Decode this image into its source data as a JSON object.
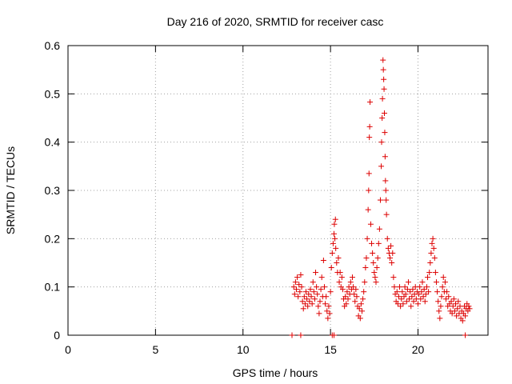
{
  "chart_data": {
    "type": "scatter",
    "title": "Day 216 of 2020, SRMTID for receiver casc",
    "xlabel": "GPS time / hours",
    "ylabel": "SRMTID / TECUs",
    "xlim": [
      0,
      24
    ],
    "ylim": [
      0,
      0.6
    ],
    "xticks": [
      0,
      5,
      10,
      15,
      20
    ],
    "yticks": [
      0,
      0.1,
      0.2,
      0.3,
      0.4,
      0.5,
      0.6
    ],
    "xtick_labels": [
      "0",
      "5",
      "10",
      "15",
      "20"
    ],
    "ytick_labels": [
      "0",
      "0.1",
      "0.2",
      "0.3",
      "0.4",
      "0.5",
      "0.6"
    ],
    "grid": true,
    "marker": "+",
    "color": "#dd0000",
    "series": [
      {
        "name": "SRMTID",
        "points": [
          [
            12.9,
            0.1
          ],
          [
            12.95,
            0.085
          ],
          [
            13.0,
            0.11
          ],
          [
            13.05,
            0.095
          ],
          [
            13.1,
            0.12
          ],
          [
            13.15,
            0.08
          ],
          [
            13.2,
            0.105
          ],
          [
            13.25,
            0.09
          ],
          [
            13.3,
            0.125
          ],
          [
            13.35,
            0.1
          ],
          [
            13.4,
            0.07
          ],
          [
            13.45,
            0.055
          ],
          [
            13.5,
            0.08
          ],
          [
            13.55,
            0.065
          ],
          [
            13.6,
            0.09
          ],
          [
            13.65,
            0.075
          ],
          [
            13.7,
            0.06
          ],
          [
            13.75,
            0.085
          ],
          [
            13.8,
            0.07
          ],
          [
            13.85,
            0.095
          ],
          [
            13.9,
            0.08
          ],
          [
            13.95,
            0.065
          ],
          [
            14.0,
            0.11
          ],
          [
            14.05,
            0.09
          ],
          [
            14.1,
            0.075
          ],
          [
            14.15,
            0.13
          ],
          [
            14.2,
            0.1
          ],
          [
            14.25,
            0.085
          ],
          [
            14.3,
            0.06
          ],
          [
            14.35,
            0.045
          ],
          [
            14.4,
            0.07
          ],
          [
            14.45,
            0.095
          ],
          [
            14.5,
            0.12
          ],
          [
            14.55,
            0.08
          ],
          [
            14.6,
            0.155
          ],
          [
            14.65,
            0.1
          ],
          [
            14.7,
            0.065
          ],
          [
            14.75,
            0.08
          ],
          [
            14.8,
            0.05
          ],
          [
            14.85,
            0.035
          ],
          [
            14.9,
            0.06
          ],
          [
            14.95,
            0.045
          ],
          [
            15.0,
            0.09
          ],
          [
            15.05,
            0.14
          ],
          [
            15.1,
            0.17
          ],
          [
            15.15,
            0.19
          ],
          [
            15.2,
            0.21
          ],
          [
            15.22,
            0.23
          ],
          [
            15.25,
            0.2
          ],
          [
            15.28,
            0.24
          ],
          [
            15.3,
            0.18
          ],
          [
            15.35,
            0.15
          ],
          [
            15.4,
            0.13
          ],
          [
            15.45,
            0.16
          ],
          [
            15.5,
            0.11
          ],
          [
            15.55,
            0.13
          ],
          [
            15.6,
            0.1
          ],
          [
            15.65,
            0.12
          ],
          [
            15.7,
            0.095
          ],
          [
            15.75,
            0.075
          ],
          [
            15.8,
            0.06
          ],
          [
            15.85,
            0.08
          ],
          [
            15.9,
            0.065
          ],
          [
            15.95,
            0.09
          ],
          [
            16.0,
            0.075
          ],
          [
            16.05,
            0.1
          ],
          [
            16.1,
            0.085
          ],
          [
            16.15,
            0.11
          ],
          [
            16.2,
            0.095
          ],
          [
            16.25,
            0.12
          ],
          [
            16.3,
            0.1
          ],
          [
            16.35,
            0.085
          ],
          [
            16.4,
            0.07
          ],
          [
            16.45,
            0.095
          ],
          [
            16.5,
            0.08
          ],
          [
            16.55,
            0.06
          ],
          [
            16.6,
            0.04
          ],
          [
            16.65,
            0.055
          ],
          [
            16.7,
            0.035
          ],
          [
            16.75,
            0.065
          ],
          [
            16.8,
            0.05
          ],
          [
            16.85,
            0.075
          ],
          [
            16.9,
            0.09
          ],
          [
            16.95,
            0.11
          ],
          [
            17.0,
            0.14
          ],
          [
            17.05,
            0.16
          ],
          [
            17.1,
            0.2
          ],
          [
            17.15,
            0.26
          ],
          [
            17.18,
            0.3
          ],
          [
            17.2,
            0.335
          ],
          [
            17.22,
            0.41
          ],
          [
            17.24,
            0.432
          ],
          [
            17.26,
            0.483
          ],
          [
            17.3,
            0.23
          ],
          [
            17.35,
            0.19
          ],
          [
            17.4,
            0.17
          ],
          [
            17.45,
            0.15
          ],
          [
            17.5,
            0.13
          ],
          [
            17.55,
            0.12
          ],
          [
            17.6,
            0.11
          ],
          [
            17.65,
            0.14
          ],
          [
            17.7,
            0.16
          ],
          [
            17.75,
            0.19
          ],
          [
            17.8,
            0.22
          ],
          [
            17.85,
            0.28
          ],
          [
            17.9,
            0.35
          ],
          [
            17.92,
            0.4
          ],
          [
            17.95,
            0.45
          ],
          [
            17.97,
            0.49
          ],
          [
            18.0,
            0.57
          ],
          [
            18.02,
            0.55
          ],
          [
            18.04,
            0.53
          ],
          [
            18.06,
            0.51
          ],
          [
            18.08,
            0.46
          ],
          [
            18.1,
            0.42
          ],
          [
            18.12,
            0.37
          ],
          [
            18.14,
            0.32
          ],
          [
            18.16,
            0.3
          ],
          [
            18.18,
            0.28
          ],
          [
            18.2,
            0.25
          ],
          [
            18.25,
            0.2
          ],
          [
            18.3,
            0.18
          ],
          [
            18.35,
            0.17
          ],
          [
            18.4,
            0.16
          ],
          [
            18.45,
            0.185
          ],
          [
            18.5,
            0.15
          ],
          [
            18.55,
            0.17
          ],
          [
            18.6,
            0.12
          ],
          [
            18.65,
            0.1
          ],
          [
            18.7,
            0.085
          ],
          [
            18.75,
            0.07
          ],
          [
            18.8,
            0.09
          ],
          [
            18.85,
            0.065
          ],
          [
            18.9,
            0.08
          ],
          [
            18.95,
            0.1
          ],
          [
            19.0,
            0.06
          ],
          [
            19.05,
            0.075
          ],
          [
            19.1,
            0.09
          ],
          [
            19.15,
            0.065
          ],
          [
            19.2,
            0.08
          ],
          [
            19.25,
            0.1
          ],
          [
            19.3,
            0.085
          ],
          [
            19.35,
            0.07
          ],
          [
            19.4,
            0.095
          ],
          [
            19.45,
            0.11
          ],
          [
            19.5,
            0.075
          ],
          [
            19.55,
            0.09
          ],
          [
            19.6,
            0.06
          ],
          [
            19.65,
            0.08
          ],
          [
            19.7,
            0.095
          ],
          [
            19.75,
            0.07
          ],
          [
            19.8,
            0.085
          ],
          [
            19.85,
            0.1
          ],
          [
            19.9,
            0.075
          ],
          [
            19.95,
            0.09
          ],
          [
            20.0,
            0.065
          ],
          [
            20.05,
            0.085
          ],
          [
            20.1,
            0.1
          ],
          [
            20.15,
            0.075
          ],
          [
            20.2,
            0.09
          ],
          [
            20.25,
            0.11
          ],
          [
            20.3,
            0.08
          ],
          [
            20.35,
            0.095
          ],
          [
            20.4,
            0.07
          ],
          [
            20.45,
            0.085
          ],
          [
            20.5,
            0.1
          ],
          [
            20.55,
            0.12
          ],
          [
            20.6,
            0.09
          ],
          [
            20.65,
            0.13
          ],
          [
            20.7,
            0.15
          ],
          [
            20.75,
            0.17
          ],
          [
            20.8,
            0.19
          ],
          [
            20.85,
            0.2
          ],
          [
            20.9,
            0.18
          ],
          [
            20.95,
            0.16
          ],
          [
            21.0,
            0.13
          ],
          [
            21.05,
            0.11
          ],
          [
            21.1,
            0.09
          ],
          [
            21.15,
            0.07
          ],
          [
            21.2,
            0.05
          ],
          [
            21.25,
            0.035
          ],
          [
            21.3,
            0.06
          ],
          [
            21.35,
            0.08
          ],
          [
            21.4,
            0.1
          ],
          [
            21.45,
            0.12
          ],
          [
            21.5,
            0.09
          ],
          [
            21.55,
            0.11
          ],
          [
            21.6,
            0.075
          ],
          [
            21.65,
            0.09
          ],
          [
            21.7,
            0.06
          ],
          [
            21.75,
            0.08
          ],
          [
            21.8,
            0.065
          ],
          [
            21.85,
            0.05
          ],
          [
            21.9,
            0.07
          ],
          [
            21.95,
            0.045
          ],
          [
            22.0,
            0.06
          ],
          [
            22.05,
            0.075
          ],
          [
            22.1,
            0.05
          ],
          [
            22.15,
            0.065
          ],
          [
            22.2,
            0.04
          ],
          [
            22.25,
            0.055
          ],
          [
            22.3,
            0.07
          ],
          [
            22.35,
            0.045
          ],
          [
            22.4,
            0.06
          ],
          [
            22.45,
            0.035
          ],
          [
            22.5,
            0.05
          ],
          [
            22.55,
            0.03
          ],
          [
            22.6,
            0.045
          ],
          [
            22.65,
            0.06
          ],
          [
            22.7,
            0.04
          ],
          [
            22.75,
            0.055
          ],
          [
            22.8,
            0.065
          ],
          [
            22.85,
            0.05
          ],
          [
            22.9,
            0.06
          ],
          [
            22.95,
            0.055
          ],
          [
            12.8,
            0.0
          ],
          [
            13.3,
            0.0
          ],
          [
            15.1,
            0.0
          ],
          [
            15.2,
            0.0
          ],
          [
            22.7,
            0.0
          ]
        ]
      }
    ]
  }
}
